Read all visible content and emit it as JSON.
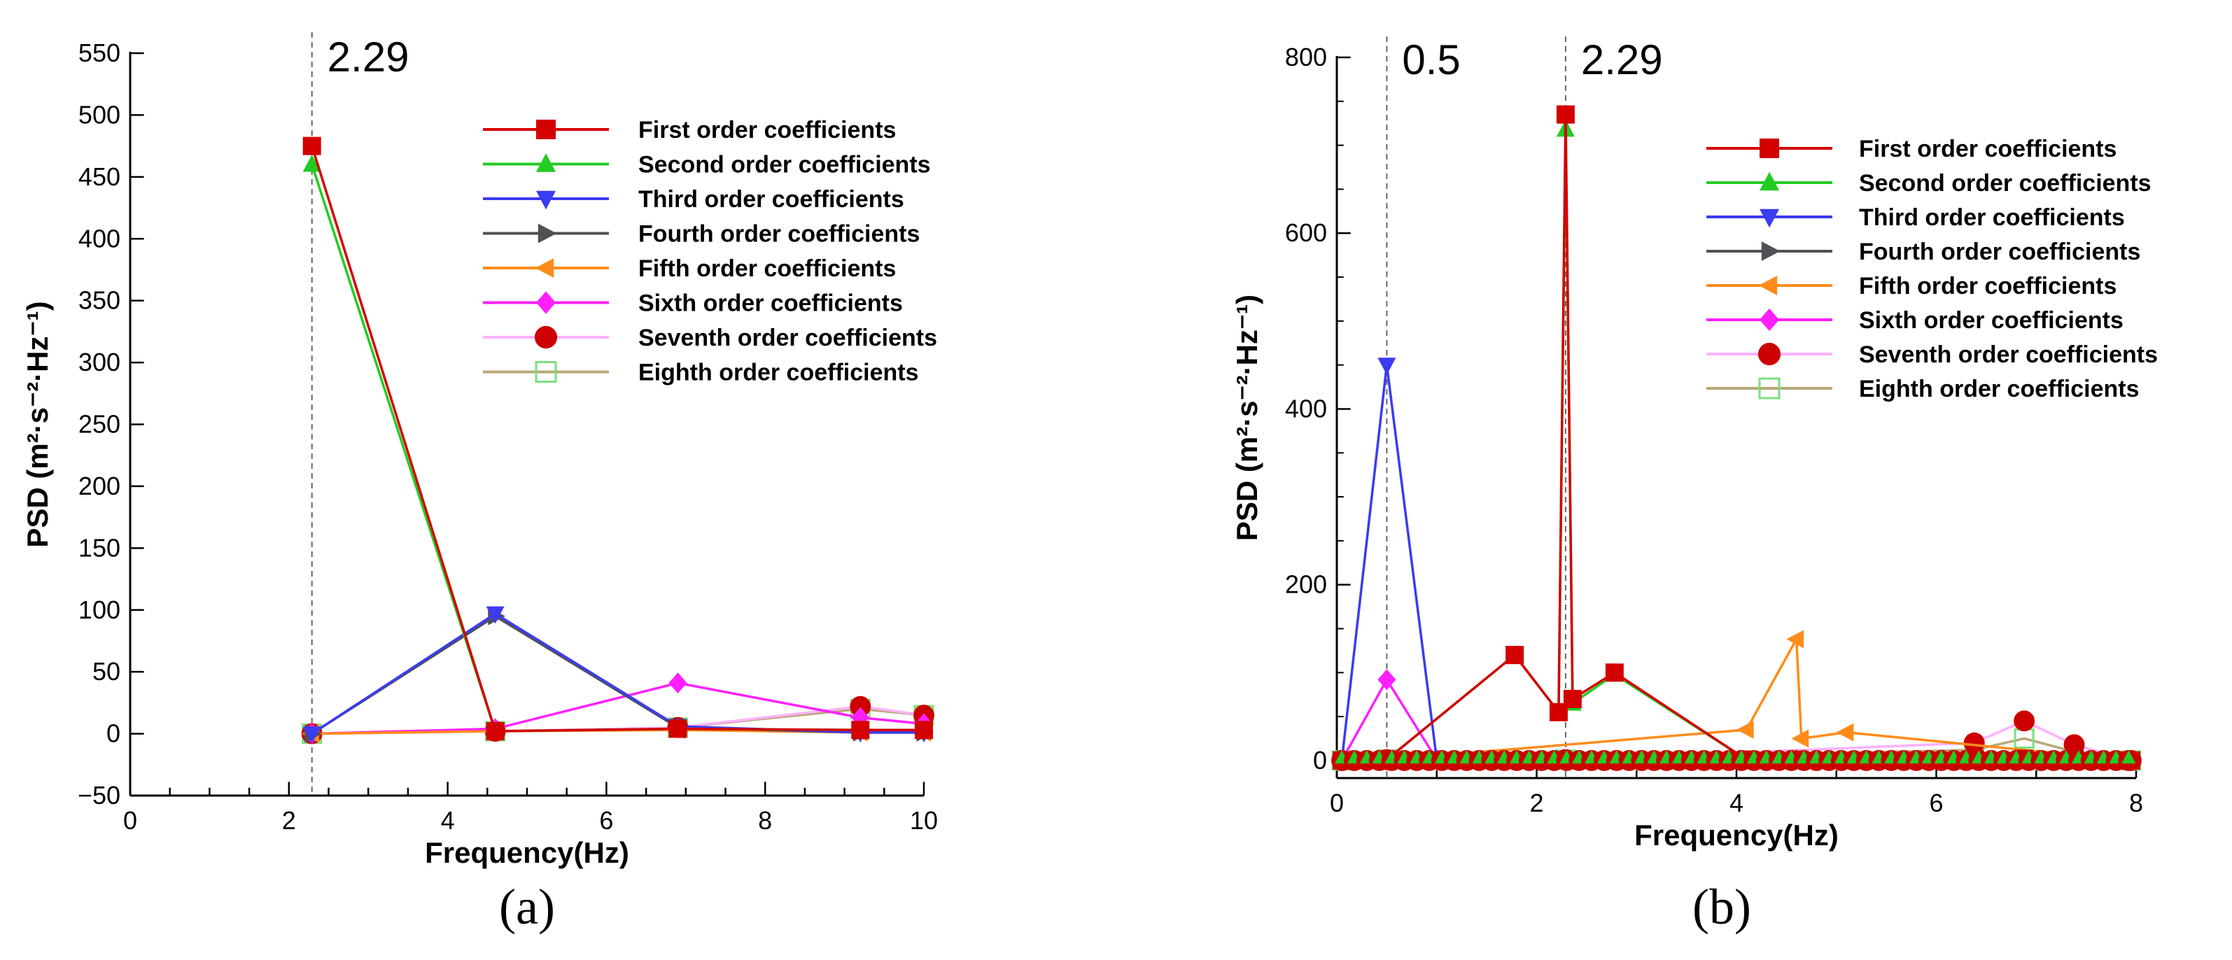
{
  "colors": {
    "first": "#d40000",
    "second": "#22cc22",
    "third": "#3b3bf0",
    "fourth": "#505055",
    "fifth": "#ff8c1a",
    "sixth": "#ff1fff",
    "seventh": "#ffb0ff",
    "eighth": "#b8a878"
  },
  "chart_data": [
    {
      "type": "line",
      "panel_label": "(a)",
      "xlabel": "Frequency(Hz)",
      "ylabel": "PSD (m²·s⁻²·Hz⁻¹)",
      "xlim": [
        0,
        10
      ],
      "ylim": [
        -50,
        550
      ],
      "xticks": [
        0,
        2,
        4,
        6,
        8,
        10
      ],
      "yticks": [
        -50,
        0,
        50,
        100,
        150,
        200,
        250,
        300,
        350,
        400,
        450,
        500,
        550
      ],
      "reference_lines": [
        {
          "x": 2.29,
          "label": "2.29"
        }
      ],
      "legend_position": "right",
      "series": [
        {
          "name": "First order coefficients",
          "color_key": "first",
          "marker": "square-filled",
          "x": [
            2.29,
            4.6,
            6.9,
            9.2,
            10
          ],
          "y": [
            475,
            2,
            4,
            3,
            3
          ]
        },
        {
          "name": "Second order coefficients",
          "color_key": "second",
          "marker": "triangle-up-filled",
          "x": [
            2.29,
            4.6,
            6.9,
            9.2,
            10
          ],
          "y": [
            460,
            2,
            4,
            3,
            3
          ]
        },
        {
          "name": "Third order coefficients",
          "color_key": "third",
          "marker": "triangle-down-filled",
          "x": [
            2.29,
            4.6,
            6.9,
            9.2,
            10
          ],
          "y": [
            0,
            97,
            6,
            1,
            1
          ]
        },
        {
          "name": "Fourth order coefficients",
          "color_key": "fourth",
          "marker": "triangle-right-filled",
          "x": [
            2.29,
            4.6,
            6.9,
            9.2,
            10
          ],
          "y": [
            0,
            95,
            5,
            1,
            1
          ]
        },
        {
          "name": "Fifth order coefficients",
          "color_key": "fifth",
          "marker": "triangle-left-filled",
          "x": [
            2.29,
            4.6,
            6.9,
            9.2,
            10
          ],
          "y": [
            0,
            2,
            3,
            1,
            1
          ]
        },
        {
          "name": "Sixth order coefficients",
          "color_key": "sixth",
          "marker": "diamond-filled",
          "x": [
            2.29,
            4.6,
            6.9,
            9.2,
            10
          ],
          "y": [
            0,
            4,
            41,
            13,
            8
          ]
        },
        {
          "name": "Seventh order coefficients",
          "color_key": "seventh",
          "marker": "circle-filled",
          "x": [
            2.29,
            4.6,
            6.9,
            9.2,
            10
          ],
          "y": [
            0,
            2,
            5,
            22,
            15
          ]
        },
        {
          "name": "Eighth order coefficients",
          "color_key": "eighth",
          "marker": "square-open",
          "x": [
            2.29,
            4.6,
            6.9,
            9.2,
            10
          ],
          "y": [
            0,
            2,
            5,
            20,
            15
          ]
        }
      ]
    },
    {
      "type": "line",
      "panel_label": "(b)",
      "xlabel": "Frequency(Hz)",
      "ylabel": "PSD (m²·s⁻²·Hz⁻¹)",
      "xlim": [
        0,
        8
      ],
      "ylim": [
        -20,
        800
      ],
      "xticks": [
        0,
        2,
        4,
        6,
        8
      ],
      "yticks": [
        0,
        200,
        400,
        600,
        800
      ],
      "reference_lines": [
        {
          "x": 0.5,
          "label": "0.5"
        },
        {
          "x": 2.29,
          "label": "2.29"
        }
      ],
      "legend_position": "top-right",
      "series": [
        {
          "name": "First order coefficients",
          "color_key": "first",
          "marker": "square-filled",
          "x": [
            0.05,
            0.5,
            1.78,
            2.22,
            2.29,
            2.36,
            2.78,
            4.1,
            4.6,
            6.38,
            6.88,
            7.38,
            7.95
          ],
          "y": [
            0,
            1,
            120,
            55,
            735,
            70,
            100,
            1,
            1,
            2,
            2,
            2,
            0
          ]
        },
        {
          "name": "Second order coefficients",
          "color_key": "second",
          "marker": "triangle-up-filled",
          "x": [
            0.05,
            0.5,
            1.78,
            2.22,
            2.29,
            2.36,
            2.78,
            4.1,
            4.6,
            6.38,
            6.88,
            7.38,
            7.95
          ],
          "y": [
            0,
            1,
            120,
            55,
            718,
            65,
            98,
            1,
            1,
            2,
            2,
            2,
            0
          ]
        },
        {
          "name": "Third order coefficients",
          "color_key": "third",
          "marker": "triangle-down-filled",
          "x": [
            0.05,
            0.5,
            1.0,
            2.29,
            4.1,
            6.0,
            7.95
          ],
          "y": [
            0,
            450,
            1,
            1,
            1,
            1,
            0
          ]
        },
        {
          "name": "Fourth order coefficients",
          "color_key": "fourth",
          "marker": "triangle-right-filled",
          "x": [
            0.05,
            0.5,
            1.0,
            2.29,
            4.1,
            6.0,
            7.95
          ],
          "y": [
            0,
            1,
            1,
            1,
            1,
            1,
            0
          ]
        },
        {
          "name": "Fifth order coefficients",
          "color_key": "fifth",
          "marker": "triangle-left-filled",
          "x": [
            0.05,
            0.5,
            4.1,
            4.6,
            4.65,
            5.1,
            7.95
          ],
          "y": [
            0,
            1,
            35,
            138,
            25,
            32,
            0
          ]
        },
        {
          "name": "Sixth order coefficients",
          "color_key": "sixth",
          "marker": "diamond-filled",
          "x": [
            0.05,
            0.5,
            1.0,
            2.29,
            4.6,
            6.88,
            7.95
          ],
          "y": [
            0,
            92,
            1,
            1,
            1,
            1,
            0
          ]
        },
        {
          "name": "Seventh order coefficients",
          "color_key": "seventh",
          "marker": "circle-filled",
          "x": [
            0.05,
            0.5,
            2.29,
            6.38,
            6.88,
            7.38,
            7.95
          ],
          "y": [
            0,
            1,
            1,
            20,
            45,
            18,
            0
          ]
        },
        {
          "name": "Eighth order coefficients",
          "color_key": "eighth",
          "marker": "square-open",
          "x": [
            0.05,
            0.5,
            2.29,
            6.38,
            6.88,
            7.38,
            7.95
          ],
          "y": [
            0,
            1,
            1,
            12,
            25,
            10,
            0
          ]
        }
      ]
    }
  ]
}
